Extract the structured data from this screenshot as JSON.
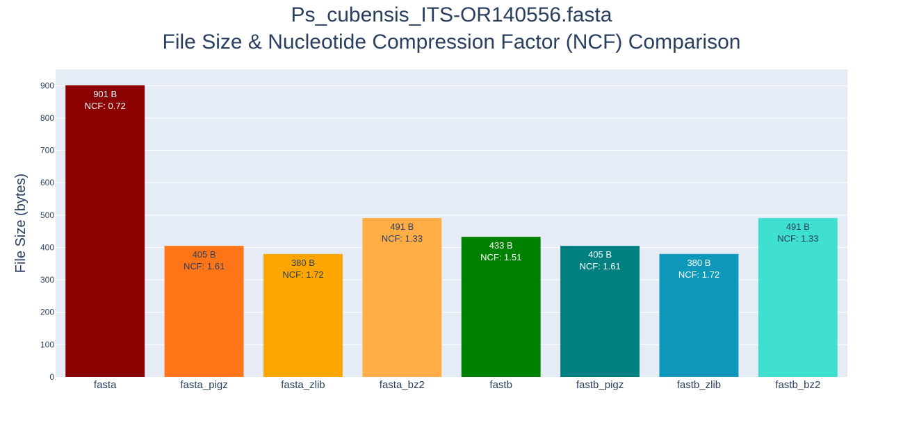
{
  "chart_data": {
    "type": "bar",
    "title_lines": [
      "Ps_cubensis_ITS-OR140556.fasta",
      "File Size & Nucleotide Compression Factor (NCF) Comparison"
    ],
    "xlabel": "",
    "ylabel": "File Size (bytes)",
    "ylim": [
      0,
      950
    ],
    "yticks": [
      0,
      100,
      200,
      300,
      400,
      500,
      600,
      700,
      800,
      900
    ],
    "grid": true,
    "plot_background": "#e5ecf6",
    "categories": [
      "fasta",
      "fasta_pigz",
      "fasta_zlib",
      "fasta_bz2",
      "fastb",
      "fastb_pigz",
      "fastb_zlib",
      "fastb_bz2"
    ],
    "values": [
      901,
      405,
      380,
      491,
      433,
      405,
      380,
      491
    ],
    "ncf": [
      0.72,
      1.61,
      1.72,
      1.33,
      1.51,
      1.61,
      1.72,
      1.33
    ],
    "size_labels": [
      "901 B",
      "405 B",
      "380 B",
      "491 B",
      "433 B",
      "405 B",
      "380 B",
      "491 B"
    ],
    "ncf_labels": [
      "NCF: 0.72",
      "NCF: 1.61",
      "NCF: 1.72",
      "NCF: 1.33",
      "NCF: 1.51",
      "NCF: 1.61",
      "NCF: 1.72",
      "NCF: 1.33"
    ],
    "colors": [
      "#8b0000",
      "#ff7518",
      "#ffa500",
      "#ffad45",
      "#008000",
      "#008080",
      "#0e99bb",
      "#40e0d0"
    ],
    "label_colors": [
      "#ffffff",
      "#2a3f5f",
      "#2a3f5f",
      "#2a3f5f",
      "#ffffff",
      "#ffffff",
      "#ffffff",
      "#2a3f5f"
    ]
  }
}
